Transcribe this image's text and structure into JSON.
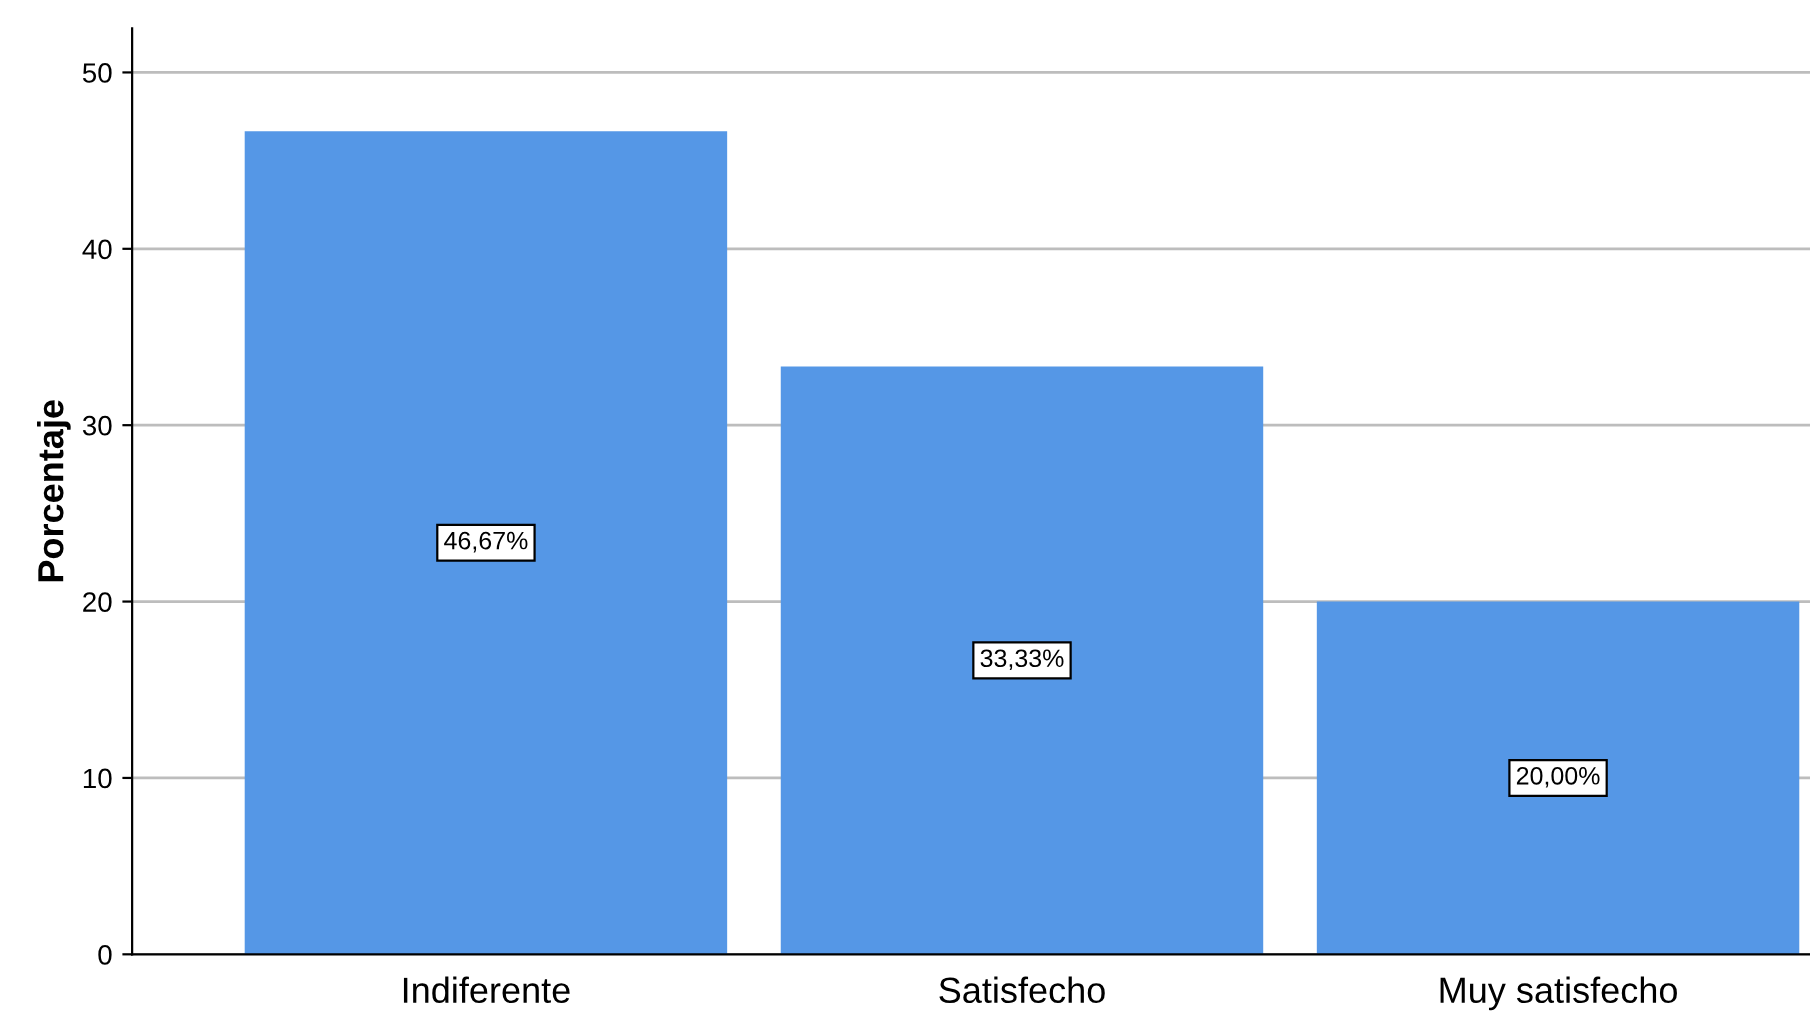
{
  "chart_data": {
    "type": "bar",
    "ylabel": "Porcentaje",
    "categories": [
      "Indiferente",
      "Satisfecho",
      "Muy satisfecho"
    ],
    "values": [
      46.67,
      33.33,
      20.0
    ],
    "value_labels": [
      "46,67%",
      "33,33%",
      "20,00%"
    ],
    "color": "#5597e6",
    "ylim": [
      0,
      52.5
    ],
    "yticks": [
      0,
      10,
      20,
      30,
      40,
      50
    ],
    "grid": "y",
    "legend": false
  }
}
